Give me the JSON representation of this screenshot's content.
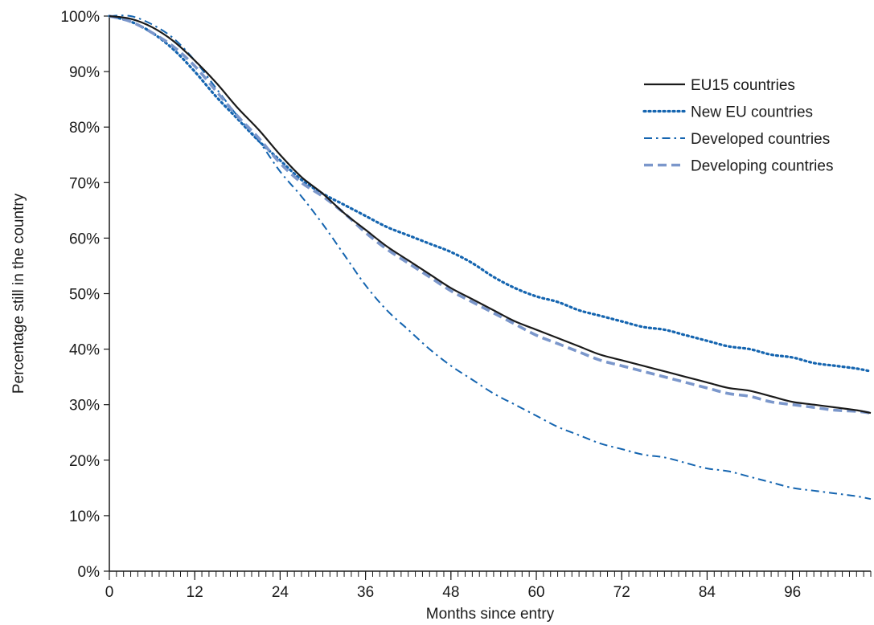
{
  "chart_data": {
    "type": "line",
    "title": "",
    "xlabel": "Months since entry",
    "ylabel": "Percentage still in the country",
    "xlim": [
      0,
      107
    ],
    "ylim": [
      0,
      100
    ],
    "x_ticks": [
      0,
      12,
      24,
      36,
      48,
      60,
      72,
      84,
      96
    ],
    "x_tick_labels": [
      "0",
      "12",
      "24",
      "36",
      "48",
      "60",
      "72",
      "84",
      "96"
    ],
    "y_ticks": [
      0,
      10,
      20,
      30,
      40,
      50,
      60,
      70,
      80,
      90,
      100
    ],
    "y_tick_labels": [
      "0%",
      "10%",
      "20%",
      "30%",
      "40%",
      "50%",
      "60%",
      "70%",
      "80%",
      "90%",
      "100%"
    ],
    "x_minor_tick_step": 1,
    "grid": false,
    "legend_position": "top-right",
    "series": [
      {
        "name": "EU15 countries",
        "color": "#1a1a1a",
        "style": "solid",
        "x": [
          0,
          3,
          6,
          9,
          12,
          15,
          18,
          21,
          24,
          27,
          30,
          33,
          36,
          39,
          42,
          45,
          48,
          51,
          54,
          57,
          60,
          63,
          66,
          69,
          72,
          75,
          78,
          81,
          84,
          87,
          90,
          93,
          96,
          99,
          102,
          105,
          107
        ],
        "y": [
          100,
          99.5,
          98,
          95.5,
          92,
          88,
          83.5,
          79.5,
          75,
          71,
          68,
          64.5,
          61.5,
          58.5,
          56,
          53.5,
          51,
          49,
          47,
          45,
          43.5,
          42,
          40.5,
          39,
          38,
          37,
          36,
          35,
          34,
          33,
          32.5,
          31.5,
          30.5,
          30,
          29.5,
          29,
          28.5
        ]
      },
      {
        "name": "New EU countries",
        "color": "#1565b0",
        "style": "dotted",
        "x": [
          0,
          3,
          6,
          9,
          12,
          15,
          18,
          21,
          24,
          27,
          30,
          33,
          36,
          39,
          42,
          45,
          48,
          51,
          54,
          57,
          60,
          63,
          66,
          69,
          72,
          75,
          78,
          81,
          84,
          87,
          90,
          93,
          96,
          99,
          102,
          105,
          107
        ],
        "y": [
          100,
          99,
          97,
          94,
          90,
          85.5,
          81.5,
          77.5,
          74,
          70.5,
          68,
          66,
          64,
          62,
          60.5,
          59,
          57.5,
          55.5,
          53,
          51,
          49.5,
          48.5,
          47,
          46,
          45,
          44,
          43.5,
          42.5,
          41.5,
          40.5,
          40,
          39,
          38.5,
          37.5,
          37,
          36.5,
          36
        ]
      },
      {
        "name": "Developed countries",
        "color": "#1565b0",
        "style": "dashdot",
        "x": [
          0,
          3,
          6,
          9,
          12,
          15,
          18,
          21,
          24,
          27,
          30,
          33,
          36,
          39,
          42,
          45,
          48,
          51,
          54,
          57,
          60,
          63,
          66,
          69,
          72,
          75,
          78,
          81,
          84,
          87,
          90,
          93,
          96,
          99,
          102,
          105,
          107
        ],
        "y": [
          100,
          100,
          98.5,
          96,
          92,
          87,
          82,
          77.5,
          72,
          67.5,
          62.5,
          57,
          51.5,
          47,
          43.5,
          40,
          37,
          34.5,
          32,
          30,
          28,
          26,
          24.5,
          23,
          22,
          21,
          20.5,
          19.5,
          18.5,
          18,
          17,
          16,
          15,
          14.5,
          14,
          13.5,
          13
        ]
      },
      {
        "name": "Developing countries",
        "color": "#7b97cb",
        "style": "dashed",
        "x": [
          0,
          3,
          6,
          9,
          12,
          15,
          18,
          21,
          24,
          27,
          30,
          33,
          36,
          39,
          42,
          45,
          48,
          51,
          54,
          57,
          60,
          63,
          66,
          69,
          72,
          75,
          78,
          81,
          84,
          87,
          90,
          93,
          96,
          99,
          102,
          105,
          107
        ],
        "y": [
          100,
          99,
          97,
          94.5,
          91,
          86.5,
          82,
          78,
          73.5,
          70,
          67.5,
          64.5,
          61,
          58,
          55.5,
          53,
          50.5,
          48.5,
          46.5,
          44.5,
          42.5,
          41,
          39.5,
          38,
          37,
          36,
          35,
          34,
          33,
          32,
          31.5,
          30.5,
          30,
          29.5,
          29,
          28.8,
          28.5
        ]
      }
    ]
  }
}
